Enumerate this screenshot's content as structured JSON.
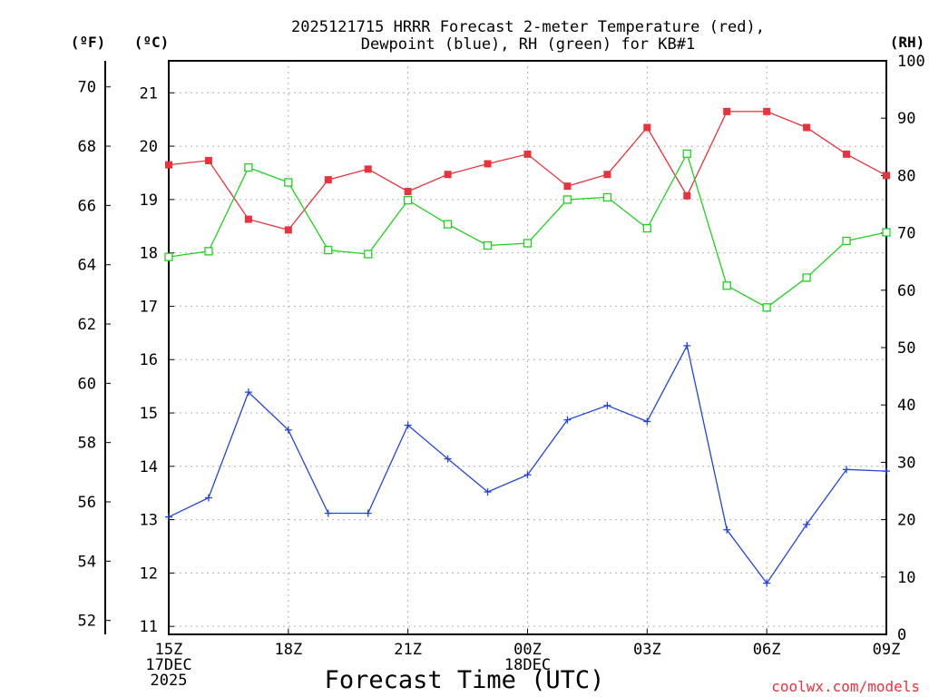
{
  "chart_data": {
    "type": "line",
    "title_line1": "2025121715 HRRR Forecast 2-meter Temperature (red),",
    "title_line2": "Dewpoint (blue), RH (green) for KB#1",
    "xlabel": "Forecast Time (UTC)",
    "credit": "coolwx.com/models",
    "units": {
      "fahrenheit": "(ºF)",
      "celsius": "(ºC)",
      "rh": "(RH)"
    },
    "grid": true,
    "x_hours_from_15Z": [
      0,
      1,
      2,
      3,
      4,
      5,
      6,
      7,
      8,
      9,
      10,
      11,
      12,
      13,
      14,
      15,
      16,
      17,
      18
    ],
    "x_range_hours": [
      0,
      18
    ],
    "x_ticks": [
      {
        "hour": 0,
        "lines": [
          "15Z",
          "17DEC",
          "2025"
        ]
      },
      {
        "hour": 3,
        "lines": [
          "18Z"
        ]
      },
      {
        "hour": 6,
        "lines": [
          "21Z"
        ]
      },
      {
        "hour": 9,
        "lines": [
          "00Z",
          "18DEC"
        ]
      },
      {
        "hour": 12,
        "lines": [
          "03Z"
        ]
      },
      {
        "hour": 15,
        "lines": [
          "06Z"
        ]
      },
      {
        "hour": 18,
        "lines": [
          "09Z"
        ]
      }
    ],
    "celsius_range": [
      10.85,
      21.6
    ],
    "celsius_ticks": [
      "11",
      "12",
      "13",
      "14",
      "15",
      "16",
      "17",
      "18",
      "19",
      "20",
      "21"
    ],
    "fahrenheit_ticks": [
      "52",
      "54",
      "56",
      "58",
      "60",
      "62",
      "64",
      "66",
      "68",
      "70"
    ],
    "rh_range": [
      0,
      100
    ],
    "rh_ticks": [
      "0",
      "10",
      "20",
      "30",
      "40",
      "50",
      "60",
      "70",
      "80",
      "90",
      "100"
    ],
    "series": [
      {
        "name": "Temperature",
        "axis": "celsius",
        "color": "#e8323c",
        "marker": "filled-square",
        "values": [
          19.65,
          19.73,
          18.63,
          18.43,
          19.37,
          19.57,
          19.15,
          19.47,
          19.67,
          19.85,
          19.25,
          19.47,
          20.35,
          19.07,
          20.65,
          20.65,
          20.35,
          19.85,
          19.45
        ]
      },
      {
        "name": "Dewpoint",
        "axis": "celsius",
        "color": "#2346dc",
        "marker": "plus",
        "values": [
          13.05,
          13.41,
          15.39,
          14.68,
          13.12,
          13.12,
          14.77,
          14.14,
          13.52,
          13.84,
          14.87,
          15.14,
          14.84,
          16.26,
          12.81,
          11.81,
          12.91,
          13.94,
          13.91
        ]
      },
      {
        "name": "RH",
        "axis": "rh",
        "color": "#1ed21e",
        "marker": "open-square",
        "values": [
          65.8,
          66.8,
          81.4,
          78.8,
          67.0,
          66.3,
          75.7,
          71.5,
          67.8,
          68.2,
          75.8,
          76.2,
          70.8,
          83.8,
          60.8,
          57.0,
          62.2,
          68.6,
          70.1
        ]
      }
    ]
  }
}
